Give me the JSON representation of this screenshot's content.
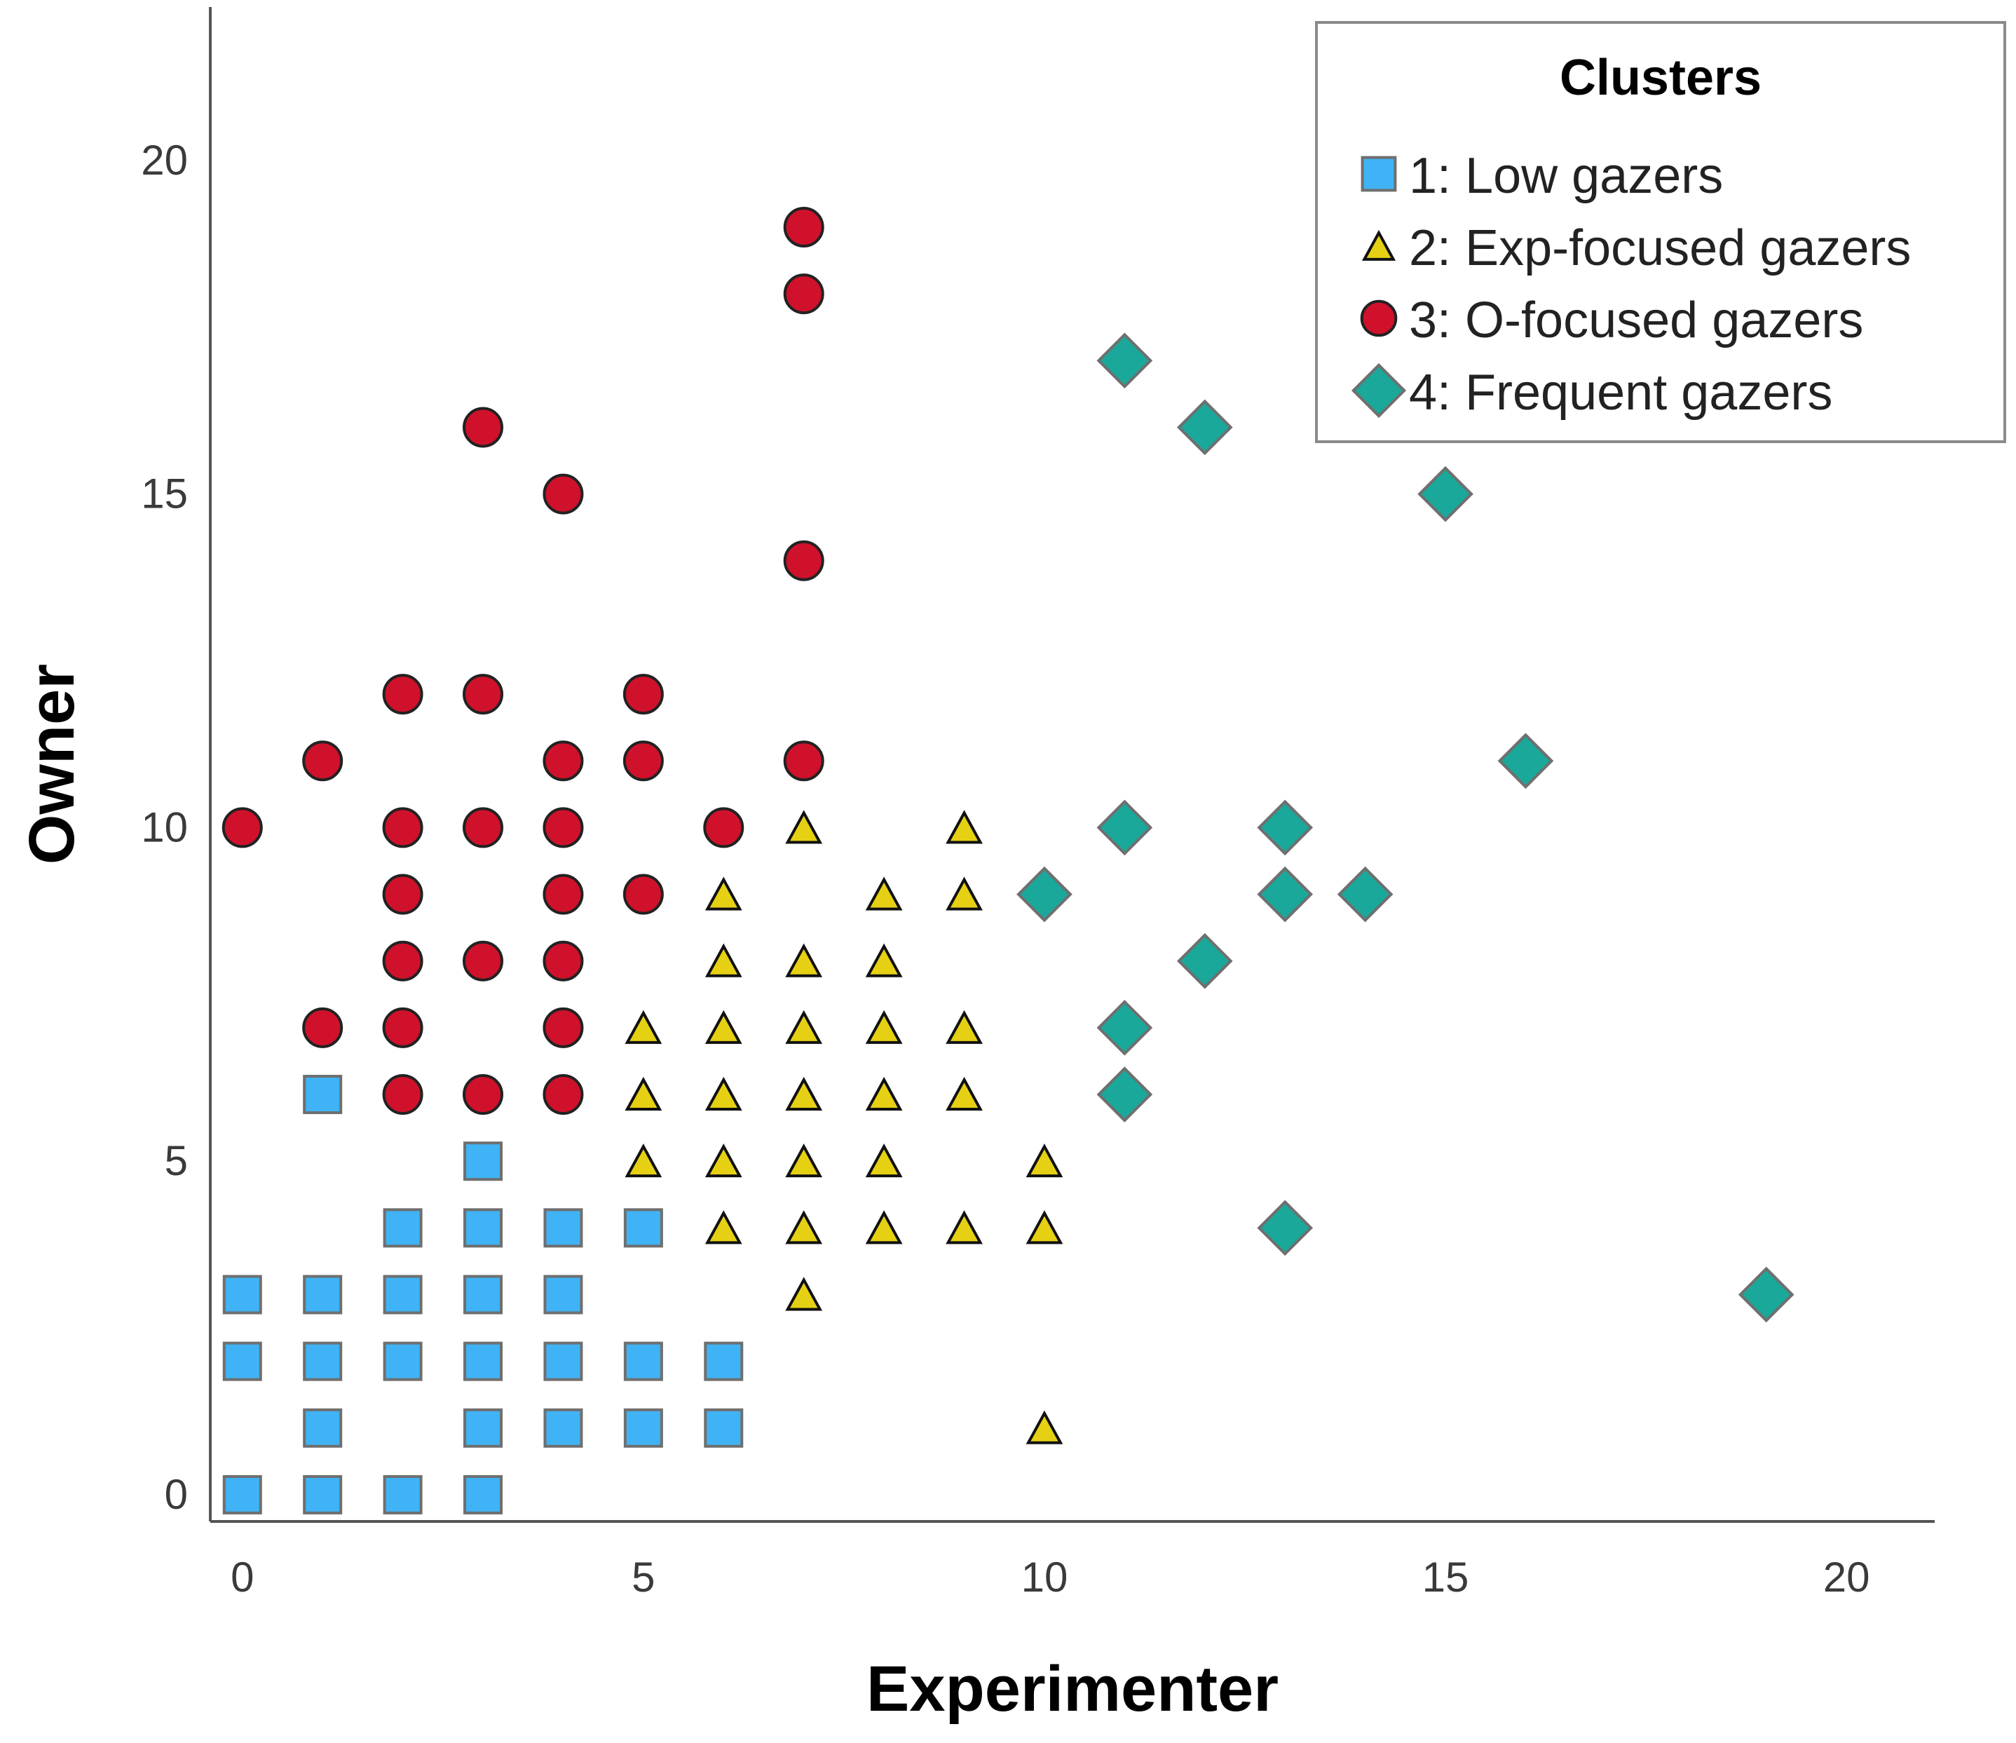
{
  "chart_data": {
    "type": "scatter",
    "xlabel": "Experimenter",
    "ylabel": "Owner",
    "xlim": [
      -0.4,
      21.1
    ],
    "ylim": [
      -0.4,
      22.3
    ],
    "xticks": [
      0,
      5,
      10,
      15,
      20
    ],
    "yticks": [
      0,
      5,
      10,
      15,
      20
    ],
    "grid": false,
    "legend": {
      "title": "Clusters",
      "position": "top-right"
    },
    "series": [
      {
        "name": "1: Low gazers",
        "marker": "square",
        "color": "#3FB3F5",
        "points": [
          [
            0,
            0
          ],
          [
            1,
            0
          ],
          [
            2,
            0
          ],
          [
            3,
            0
          ],
          [
            1,
            1
          ],
          [
            3,
            1
          ],
          [
            4,
            1
          ],
          [
            5,
            1
          ],
          [
            6,
            1
          ],
          [
            0,
            2
          ],
          [
            1,
            2
          ],
          [
            2,
            2
          ],
          [
            3,
            2
          ],
          [
            4,
            2
          ],
          [
            5,
            2
          ],
          [
            6,
            2
          ],
          [
            0,
            3
          ],
          [
            1,
            3
          ],
          [
            2,
            3
          ],
          [
            3,
            3
          ],
          [
            4,
            3
          ],
          [
            2,
            4
          ],
          [
            3,
            4
          ],
          [
            4,
            4
          ],
          [
            5,
            4
          ],
          [
            3,
            5
          ],
          [
            1,
            6
          ]
        ]
      },
      {
        "name": "2: Exp-focused gazers",
        "marker": "triangle",
        "color": "#E6D014",
        "points": [
          [
            10,
            1
          ],
          [
            7,
            3
          ],
          [
            6,
            4
          ],
          [
            7,
            4
          ],
          [
            8,
            4
          ],
          [
            9,
            4
          ],
          [
            10,
            4
          ],
          [
            5,
            5
          ],
          [
            6,
            5
          ],
          [
            7,
            5
          ],
          [
            8,
            5
          ],
          [
            10,
            5
          ],
          [
            5,
            6
          ],
          [
            6,
            6
          ],
          [
            7,
            6
          ],
          [
            8,
            6
          ],
          [
            9,
            6
          ],
          [
            5,
            7
          ],
          [
            6,
            7
          ],
          [
            7,
            7
          ],
          [
            8,
            7
          ],
          [
            9,
            7
          ],
          [
            6,
            8
          ],
          [
            7,
            8
          ],
          [
            8,
            8
          ],
          [
            6,
            9
          ],
          [
            8,
            9
          ],
          [
            9,
            9
          ],
          [
            7,
            10
          ],
          [
            9,
            10
          ]
        ]
      },
      {
        "name": "3: O-focused gazers",
        "marker": "circle",
        "color": "#D0112B",
        "points": [
          [
            2,
            6
          ],
          [
            3,
            6
          ],
          [
            4,
            6
          ],
          [
            1,
            7
          ],
          [
            2,
            7
          ],
          [
            4,
            7
          ],
          [
            2,
            8
          ],
          [
            3,
            8
          ],
          [
            4,
            8
          ],
          [
            2,
            9
          ],
          [
            4,
            9
          ],
          [
            5,
            9
          ],
          [
            0,
            10
          ],
          [
            2,
            10
          ],
          [
            3,
            10
          ],
          [
            4,
            10
          ],
          [
            6,
            10
          ],
          [
            1,
            11
          ],
          [
            4,
            11
          ],
          [
            5,
            11
          ],
          [
            7,
            11
          ],
          [
            2,
            12
          ],
          [
            3,
            12
          ],
          [
            5,
            12
          ],
          [
            7,
            14
          ],
          [
            4,
            15
          ],
          [
            3,
            16
          ],
          [
            7,
            18
          ],
          [
            7,
            19
          ]
        ]
      },
      {
        "name": "4: Frequent gazers",
        "marker": "diamond",
        "color": "#1AA89A",
        "points": [
          [
            19,
            3
          ],
          [
            13,
            4
          ],
          [
            11,
            6
          ],
          [
            11,
            7
          ],
          [
            12,
            8
          ],
          [
            10,
            9
          ],
          [
            13,
            9
          ],
          [
            14,
            9
          ],
          [
            11,
            10
          ],
          [
            13,
            10
          ],
          [
            16,
            11
          ],
          [
            15,
            15
          ],
          [
            12,
            16
          ],
          [
            11,
            17
          ]
        ]
      }
    ]
  }
}
